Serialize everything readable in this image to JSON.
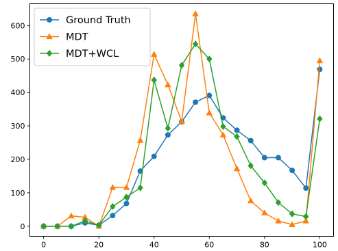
{
  "chart_data": {
    "type": "line",
    "title": "",
    "xlabel": "",
    "ylabel": "",
    "xlim": [
      -5,
      105
    ],
    "ylim": [
      -30,
      665
    ],
    "x_ticks": [
      0,
      20,
      40,
      60,
      80,
      100
    ],
    "y_ticks": [
      0,
      100,
      200,
      300,
      400,
      500,
      600
    ],
    "grid": false,
    "legend_position": "top-left",
    "x": [
      0,
      5,
      10,
      15,
      20,
      25,
      30,
      35,
      40,
      45,
      50,
      55,
      60,
      65,
      70,
      75,
      80,
      85,
      90,
      95,
      100
    ],
    "series": [
      {
        "name": "Ground Truth",
        "color": "#1f77b4",
        "marker": "circle",
        "values": [
          0,
          0,
          0,
          10,
          3,
          32,
          68,
          165,
          209,
          273,
          312,
          371,
          391,
          324,
          287,
          256,
          205,
          205,
          167,
          114,
          469
        ]
      },
      {
        "name": "MDT",
        "color": "#ff7f0e",
        "marker": "triangle",
        "values": [
          0,
          0,
          31,
          27,
          0,
          116,
          116,
          257,
          514,
          423,
          313,
          635,
          339,
          273,
          172,
          76,
          40,
          16,
          5,
          16,
          495
        ]
      },
      {
        "name": "MDT+WCL",
        "color": "#2ca02c",
        "marker": "diamond",
        "values": [
          0,
          0,
          0,
          16,
          3,
          59,
          87,
          115,
          437,
          293,
          481,
          545,
          500,
          298,
          268,
          181,
          130,
          71,
          37,
          29,
          321
        ]
      }
    ]
  }
}
